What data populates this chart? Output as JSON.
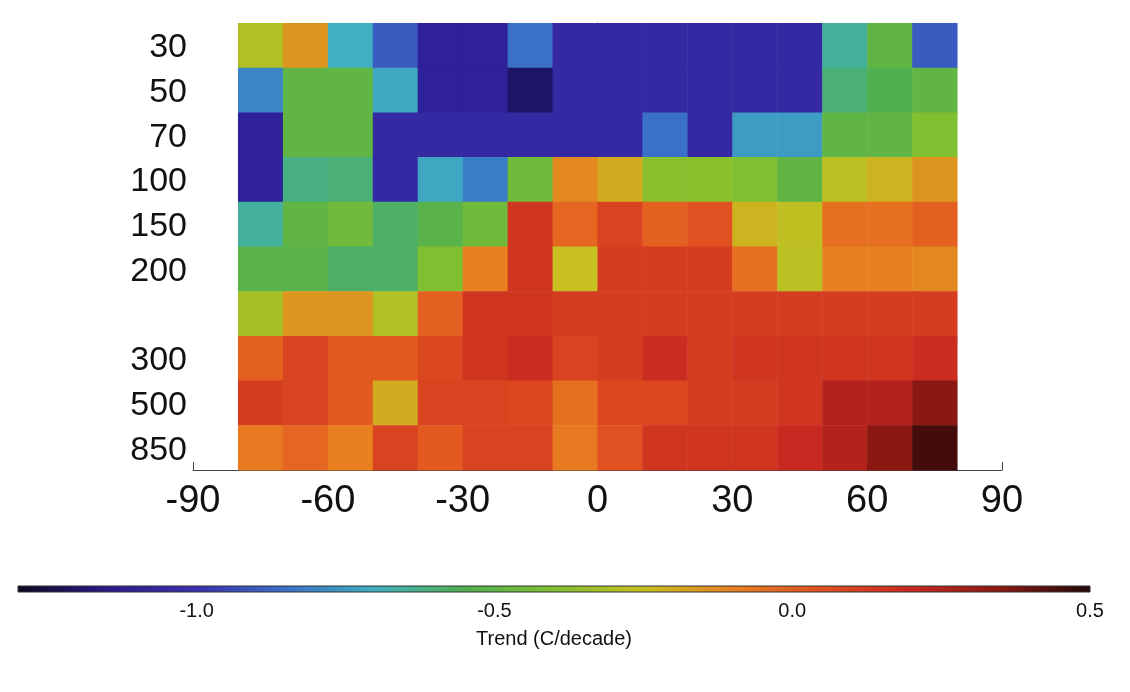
{
  "chart_data": {
    "type": "heatmap",
    "clabel": "Trend (C/decade)",
    "x": [
      -75,
      -65,
      -55,
      -45,
      -35,
      -25,
      -15,
      -5,
      5,
      15,
      25,
      35,
      45,
      55,
      65,
      75
    ],
    "xlim": [
      -90,
      90
    ],
    "xticks": [
      -90,
      -60,
      -30,
      0,
      30,
      60,
      90
    ],
    "y_categories": [
      "30",
      "50",
      "70",
      "100",
      "150",
      "200",
      null,
      "300",
      "500",
      "850"
    ],
    "cells": [
      [
        -0.3,
        -0.15,
        -0.7,
        -0.9,
        -1.1,
        -1.1,
        -0.85,
        -1.05,
        -1.05,
        -1.05,
        -1.05,
        -1.05,
        -1.05,
        -0.65,
        -0.5,
        -0.9
      ],
      [
        -0.8,
        -0.5,
        -0.5,
        -0.72,
        -1.1,
        -1.1,
        -1.2,
        -1.05,
        -1.05,
        -1.05,
        -1.05,
        -1.05,
        -1.05,
        -0.6,
        -0.55,
        -0.5
      ],
      [
        -1.1,
        -0.5,
        -0.5,
        -1.05,
        -1.05,
        -1.05,
        -1.05,
        -1.05,
        -1.05,
        -0.85,
        -1.05,
        -0.75,
        -0.75,
        -0.5,
        -0.5,
        -0.4
      ],
      [
        -1.1,
        -0.62,
        -0.6,
        -1.05,
        -0.72,
        -0.82,
        -0.45,
        -0.12,
        -0.2,
        -0.38,
        -0.38,
        -0.4,
        -0.5,
        -0.28,
        -0.22,
        -0.15
      ],
      [
        -0.65,
        -0.5,
        -0.45,
        -0.58,
        -0.52,
        -0.45,
        0.15,
        -0.02,
        0.1,
        0.0,
        0.05,
        -0.22,
        -0.27,
        -0.05,
        -0.05,
        0.0
      ],
      [
        -0.52,
        -0.52,
        -0.58,
        -0.58,
        -0.4,
        -0.1,
        0.15,
        -0.25,
        0.12,
        0.12,
        0.12,
        -0.05,
        -0.28,
        -0.1,
        -0.1,
        -0.12
      ],
      [
        -0.32,
        -0.15,
        -0.15,
        -0.3,
        0.0,
        0.15,
        0.15,
        0.12,
        0.12,
        0.12,
        0.12,
        0.12,
        0.12,
        0.12,
        0.12,
        0.12
      ],
      [
        0.0,
        0.1,
        0.02,
        0.02,
        0.08,
        0.15,
        0.18,
        0.1,
        0.12,
        0.18,
        0.12,
        0.15,
        0.15,
        0.15,
        0.15,
        0.18
      ],
      [
        0.12,
        0.1,
        0.02,
        -0.2,
        0.1,
        0.1,
        0.08,
        -0.05,
        0.08,
        0.08,
        0.12,
        0.12,
        0.15,
        0.25,
        0.25,
        0.35
      ],
      [
        -0.08,
        -0.02,
        -0.1,
        0.1,
        0.02,
        0.1,
        0.1,
        -0.08,
        0.05,
        0.15,
        0.15,
        0.15,
        0.2,
        0.25,
        0.35,
        0.45
      ]
    ],
    "clim": [
      -1.3,
      0.5
    ],
    "cticks": [
      {
        "value": -1,
        "label": "-1.0"
      },
      -0.5,
      {
        "value": 0,
        "label": "0.0"
      },
      0.5
    ]
  }
}
